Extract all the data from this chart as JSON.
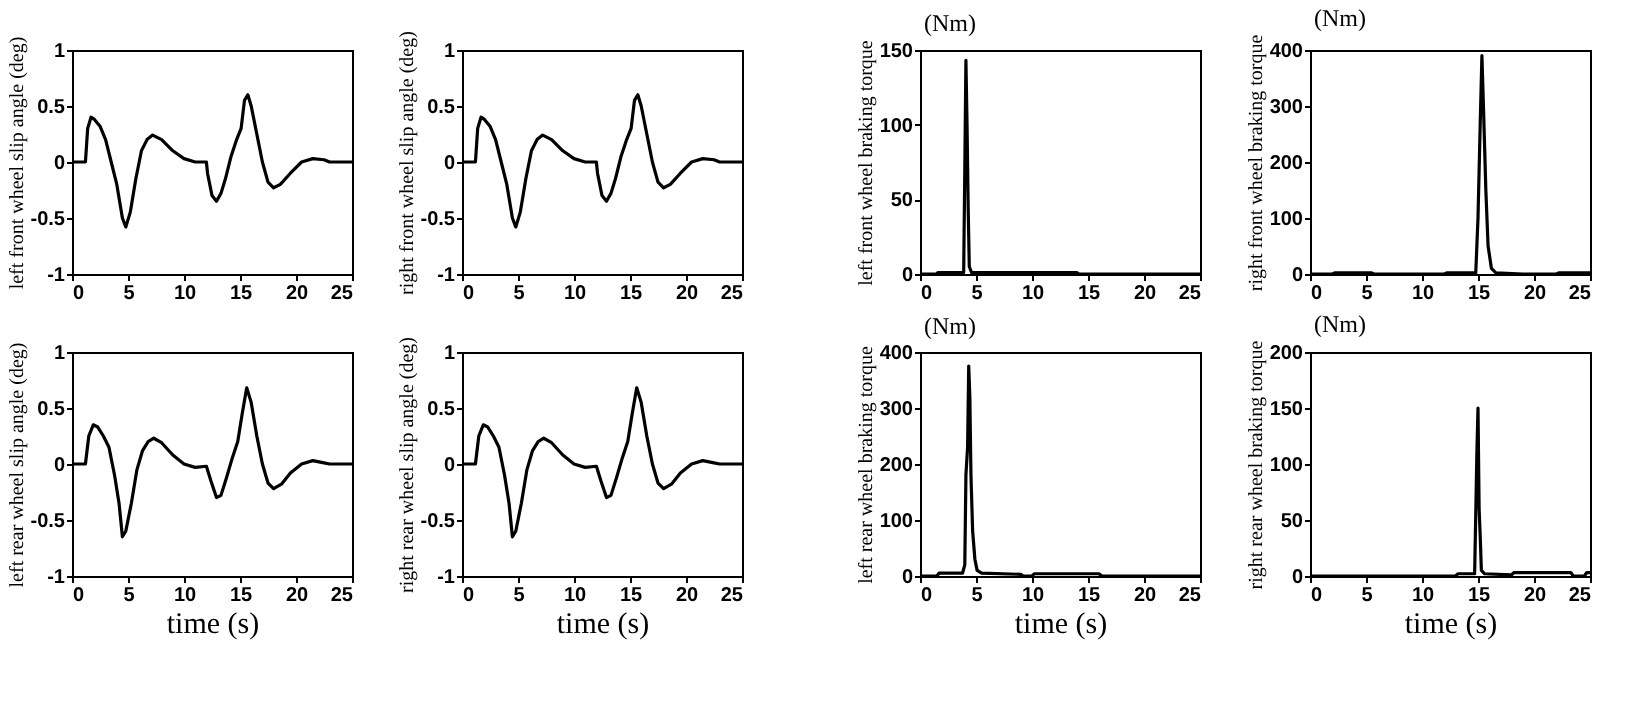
{
  "chart_data": [
    {
      "type": "line",
      "ylabel": "left front wheel slip angle (deg)",
      "xlim": [
        0,
        25
      ],
      "xticks": [
        0,
        5,
        10,
        15,
        20,
        25
      ],
      "ylim": [
        -1,
        1
      ],
      "yticks": [
        -1,
        -0.5,
        0,
        0.5,
        1
      ],
      "grid": false,
      "color": "#000000",
      "x": [
        0,
        1.2,
        1.4,
        1.7,
        2,
        2.5,
        3,
        3.5,
        4,
        4.5,
        4.8,
        5.2,
        5.7,
        6.2,
        6.7,
        7.2,
        8,
        9,
        10,
        11,
        12,
        12.1,
        12.5,
        12.9,
        13.3,
        13.7,
        14.2,
        14.7,
        15.1,
        15.4,
        15.7,
        16,
        16.5,
        17,
        17.5,
        18,
        18.6,
        19.5,
        20.5,
        21.5,
        22.5,
        23,
        25
      ],
      "values": [
        0,
        0,
        0.3,
        0.4,
        0.38,
        0.32,
        0.2,
        0,
        -0.2,
        -0.5,
        -0.58,
        -0.45,
        -0.15,
        0.1,
        0.2,
        0.24,
        0.2,
        0.1,
        0.03,
        0,
        0,
        -0.1,
        -0.3,
        -0.35,
        -0.28,
        -0.15,
        0.05,
        0.2,
        0.3,
        0.55,
        0.6,
        0.5,
        0.25,
        0,
        -0.18,
        -0.23,
        -0.2,
        -0.1,
        0,
        0.03,
        0.02,
        0,
        0
      ]
    },
    {
      "type": "line",
      "ylabel": "right front wheel slip angle (deg)",
      "xlim": [
        0,
        25
      ],
      "xticks": [
        0,
        5,
        10,
        15,
        20,
        25
      ],
      "ylim": [
        -1,
        1
      ],
      "yticks": [
        -1,
        -0.5,
        0,
        0.5,
        1
      ],
      "grid": false,
      "color": "#000000",
      "x": [
        0,
        1.2,
        1.4,
        1.7,
        2,
        2.5,
        3,
        3.5,
        4,
        4.5,
        4.8,
        5.2,
        5.7,
        6.2,
        6.7,
        7.2,
        8,
        9,
        10,
        11,
        12,
        12.1,
        12.5,
        12.9,
        13.3,
        13.7,
        14.2,
        14.7,
        15.1,
        15.4,
        15.7,
        16,
        16.5,
        17,
        17.5,
        18,
        18.6,
        19.5,
        20.5,
        21.5,
        22.5,
        23,
        25
      ],
      "values": [
        0,
        0,
        0.3,
        0.4,
        0.38,
        0.32,
        0.2,
        0,
        -0.2,
        -0.5,
        -0.58,
        -0.45,
        -0.15,
        0.1,
        0.2,
        0.24,
        0.2,
        0.1,
        0.03,
        0,
        0,
        -0.1,
        -0.3,
        -0.35,
        -0.28,
        -0.15,
        0.05,
        0.2,
        0.3,
        0.55,
        0.6,
        0.5,
        0.25,
        0,
        -0.18,
        -0.23,
        -0.2,
        -0.1,
        0,
        0.03,
        0.02,
        0,
        0
      ]
    },
    {
      "type": "line",
      "ylabel": "left front wheel braking torque",
      "annotations": [
        "(Nm)"
      ],
      "xlim": [
        0,
        25
      ],
      "xticks": [
        0,
        5,
        10,
        15,
        20,
        25
      ],
      "ylim": [
        0,
        150
      ],
      "yticks": [
        0,
        50,
        100,
        150
      ],
      "grid": false,
      "color": "#000000",
      "x": [
        0,
        1.5,
        1.6,
        3.9,
        4.0,
        4.1,
        4.2,
        4.3,
        4.4,
        4.6,
        7,
        7.5,
        14,
        14.2,
        25
      ],
      "values": [
        0,
        0,
        1,
        1,
        70,
        143,
        100,
        45,
        5,
        1,
        1,
        1,
        1,
        0,
        0
      ]
    },
    {
      "type": "line",
      "ylabel": "right front wheel braking torque",
      "annotations": [
        "(Nm)"
      ],
      "xlim": [
        0,
        25
      ],
      "xticks": [
        0,
        5,
        10,
        15,
        20,
        25
      ],
      "ylim": [
        0,
        400
      ],
      "yticks": [
        0,
        100,
        200,
        300,
        400
      ],
      "grid": false,
      "color": "#000000",
      "x": [
        0,
        2,
        2.2,
        5.5,
        5.7,
        12,
        12.2,
        14.8,
        15,
        15.2,
        15.35,
        15.5,
        15.7,
        15.9,
        16.2,
        16.6,
        19,
        22,
        22.2,
        25
      ],
      "values": [
        0,
        0,
        2,
        2,
        0,
        0,
        2,
        2,
        100,
        270,
        390,
        290,
        150,
        50,
        10,
        2,
        0,
        0,
        2,
        2
      ]
    },
    {
      "type": "line",
      "ylabel": "left rear wheel slip angle (deg)",
      "xlabel": "time (s)",
      "xlim": [
        0,
        25
      ],
      "xticks": [
        0,
        5,
        10,
        15,
        20,
        25
      ],
      "ylim": [
        -1,
        1
      ],
      "yticks": [
        -1,
        -0.5,
        0,
        0.5,
        1
      ],
      "grid": false,
      "color": "#000000",
      "x": [
        0,
        1.2,
        1.5,
        1.9,
        2.3,
        2.8,
        3.3,
        3.8,
        4.2,
        4.5,
        4.8,
        5.3,
        5.8,
        6.3,
        6.8,
        7.3,
        8,
        9,
        10,
        11,
        12,
        12.4,
        12.9,
        13.3,
        13.8,
        14.3,
        14.8,
        15.2,
        15.6,
        16,
        16.5,
        17,
        17.5,
        18,
        18.7,
        19.5,
        20.5,
        21.5,
        22.5,
        23,
        25
      ],
      "values": [
        0,
        0,
        0.25,
        0.35,
        0.33,
        0.25,
        0.15,
        -0.1,
        -0.35,
        -0.65,
        -0.6,
        -0.35,
        -0.05,
        0.12,
        0.2,
        0.23,
        0.19,
        0.08,
        0,
        -0.03,
        -0.02,
        -0.15,
        -0.3,
        -0.28,
        -0.12,
        0.05,
        0.2,
        0.45,
        0.68,
        0.55,
        0.25,
        0,
        -0.17,
        -0.22,
        -0.18,
        -0.08,
        0,
        0.03,
        0.01,
        0,
        0
      ]
    },
    {
      "type": "line",
      "ylabel": "right rear wheel slip angle (deg)",
      "xlabel": "time (s)",
      "xlim": [
        0,
        25
      ],
      "xticks": [
        0,
        5,
        10,
        15,
        20,
        25
      ],
      "ylim": [
        -1,
        1
      ],
      "yticks": [
        -1,
        -0.5,
        0,
        0.5,
        1
      ],
      "grid": false,
      "color": "#000000",
      "x": [
        0,
        1.2,
        1.5,
        1.9,
        2.3,
        2.8,
        3.3,
        3.8,
        4.2,
        4.5,
        4.8,
        5.3,
        5.8,
        6.3,
        6.8,
        7.3,
        8,
        9,
        10,
        11,
        12,
        12.4,
        12.9,
        13.3,
        13.8,
        14.3,
        14.8,
        15.2,
        15.6,
        16,
        16.5,
        17,
        17.5,
        18,
        18.7,
        19.5,
        20.5,
        21.5,
        22.5,
        23,
        25
      ],
      "values": [
        0,
        0,
        0.25,
        0.35,
        0.33,
        0.25,
        0.15,
        -0.1,
        -0.35,
        -0.65,
        -0.6,
        -0.35,
        -0.05,
        0.12,
        0.2,
        0.23,
        0.19,
        0.08,
        0,
        -0.03,
        -0.02,
        -0.15,
        -0.3,
        -0.28,
        -0.12,
        0.05,
        0.2,
        0.45,
        0.68,
        0.55,
        0.25,
        0,
        -0.17,
        -0.22,
        -0.18,
        -0.08,
        0,
        0.03,
        0.01,
        0,
        0
      ]
    },
    {
      "type": "line",
      "ylabel": "left rear wheel braking torque",
      "xlabel": "time (s)",
      "annotations": [
        "(Nm)"
      ],
      "xlim": [
        0,
        25
      ],
      "xticks": [
        0,
        5,
        10,
        15,
        20,
        25
      ],
      "ylim": [
        0,
        400
      ],
      "yticks": [
        0,
        100,
        200,
        300,
        400
      ],
      "grid": false,
      "color": "#000000",
      "x": [
        0,
        1.5,
        1.7,
        3.8,
        4.0,
        4.1,
        4.25,
        4.35,
        4.45,
        4.55,
        4.7,
        4.9,
        5.1,
        5.5,
        9,
        9.2,
        10,
        10.2,
        16,
        16.2,
        25
      ],
      "values": [
        0,
        0,
        5,
        5,
        20,
        180,
        230,
        375,
        320,
        180,
        80,
        30,
        10,
        5,
        3,
        0,
        0,
        4,
        4,
        0,
        0
      ]
    },
    {
      "type": "line",
      "ylabel": "right rear wheel braking torque",
      "xlabel": "time (s)",
      "annotations": [
        "(Nm)"
      ],
      "xlim": [
        0,
        25
      ],
      "xticks": [
        0,
        5,
        10,
        15,
        20,
        25
      ],
      "ylim": [
        0,
        200
      ],
      "yticks": [
        0,
        50,
        100,
        150,
        200
      ],
      "grid": false,
      "color": "#000000",
      "x": [
        0,
        13,
        13.2,
        14.7,
        14.9,
        15.0,
        15.1,
        15.2,
        15.3,
        15.6,
        18,
        18.2,
        23.3,
        23.5,
        24.5,
        24.7,
        25
      ],
      "values": [
        0,
        0,
        2,
        2,
        110,
        150,
        60,
        35,
        5,
        2,
        1,
        3,
        3,
        0,
        0,
        3,
        3
      ]
    }
  ]
}
